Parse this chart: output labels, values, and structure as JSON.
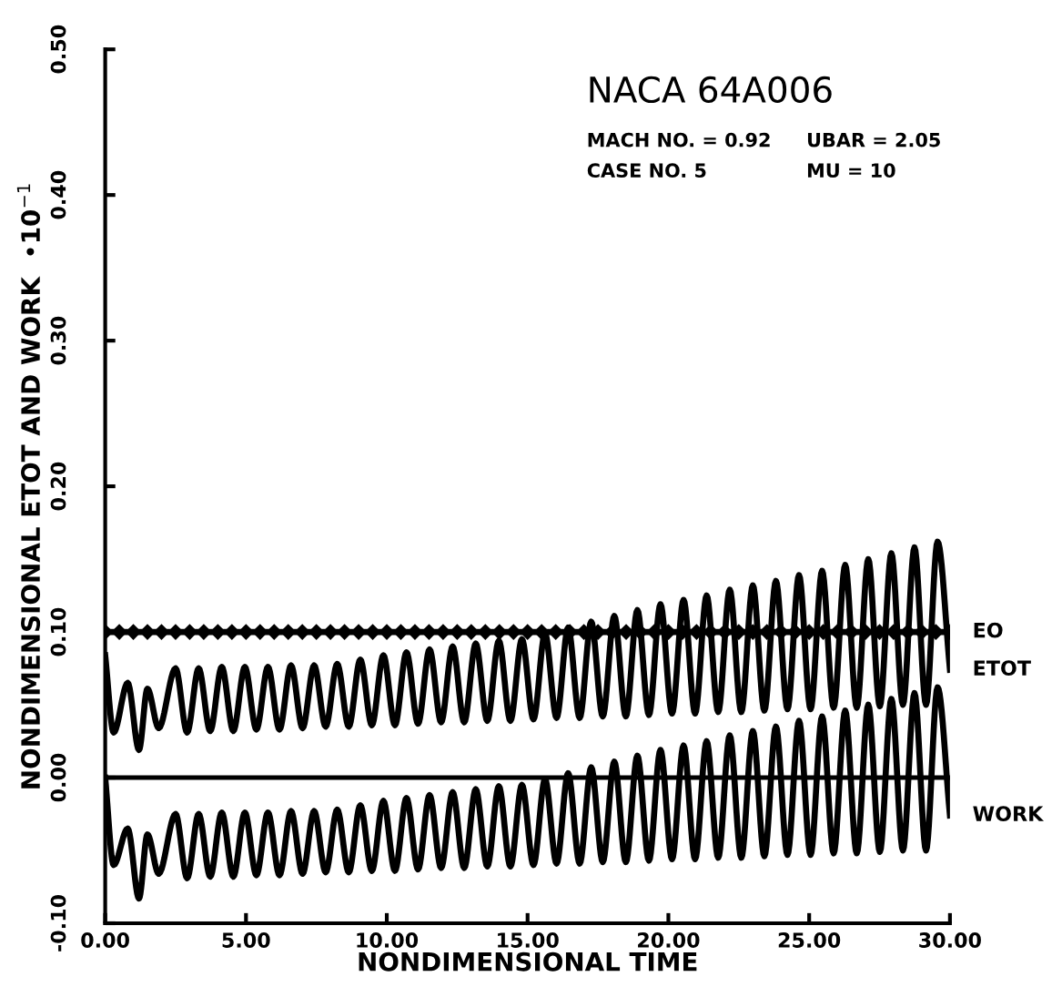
{
  "chart_data": {
    "type": "line",
    "title": "NACA 64A006",
    "annotations": [
      "MACH NO. = 0.92",
      "UBAR = 2.05",
      "CASE NO. 5",
      "MU = 10"
    ],
    "xlabel": "NONDIMENSIONAL TIME",
    "ylabel": "NONDIMENSIONAL ETOT AND WORK  •10$^{−1}$",
    "xlim": [
      0,
      30
    ],
    "ylim": [
      -0.1,
      0.5
    ],
    "xticks": [
      {
        "value": 0,
        "label": "0.00"
      },
      {
        "value": 5,
        "label": "5.00"
      },
      {
        "value": 10,
        "label": "10.00"
      },
      {
        "value": 15,
        "label": "15.00"
      },
      {
        "value": 20,
        "label": "20.00"
      },
      {
        "value": 25,
        "label": "25.00"
      },
      {
        "value": 30,
        "label": "30.00"
      }
    ],
    "yticks": [
      {
        "value": -0.1,
        "label": "-0.10"
      },
      {
        "value": 0,
        "label": "0.00"
      },
      {
        "value": 0.1,
        "label": "0.10"
      },
      {
        "value": 0.2,
        "label": "0.20"
      },
      {
        "value": 0.3,
        "label": "0.30"
      },
      {
        "value": 0.4,
        "label": "0.40"
      },
      {
        "value": 0.5,
        "label": "0.50"
      }
    ],
    "grid": false,
    "legend": "right",
    "ref_lines": [
      {
        "axis": "y",
        "value": 0,
        "color": "#000000",
        "line_style": "solid"
      }
    ],
    "series": [
      {
        "name": "EO",
        "color": "#000000",
        "marker": "diamond",
        "x": [
          0,
          0.5,
          1,
          1.5,
          2,
          2.5,
          3,
          3.5,
          4,
          4.5,
          5,
          5.5,
          6,
          6.5,
          7,
          7.5,
          8,
          8.5,
          9,
          9.5,
          10,
          10.5,
          11,
          11.5,
          12,
          12.5,
          13,
          13.5,
          14,
          14.5,
          15,
          15.5,
          16,
          16.5,
          17,
          17.5,
          18,
          18.5,
          19,
          19.5,
          20,
          20.5,
          21,
          21.5,
          22,
          22.5,
          23,
          23.5,
          24,
          24.5,
          25,
          25.5,
          26,
          26.5,
          27,
          27.5,
          28,
          28.5,
          29,
          29.5,
          30
        ],
        "values": [
          0.1,
          0.1,
          0.1,
          0.1,
          0.1,
          0.1,
          0.1,
          0.1,
          0.1,
          0.1,
          0.1,
          0.1,
          0.1,
          0.1,
          0.1,
          0.1,
          0.1,
          0.1,
          0.1,
          0.1,
          0.1,
          0.1,
          0.1,
          0.1,
          0.1,
          0.1,
          0.1,
          0.1,
          0.1,
          0.1,
          0.1,
          0.1,
          0.1,
          0.1,
          0.1,
          0.1,
          0.1,
          0.1,
          0.1,
          0.1,
          0.1,
          0.1,
          0.1,
          0.1,
          0.1,
          0.1,
          0.1,
          0.1,
          0.1,
          0.1,
          0.1,
          0.1,
          0.1,
          0.1,
          0.1,
          0.1,
          0.1,
          0.1,
          0.1,
          0.1,
          0.1
        ]
      },
      {
        "name": "ETOT",
        "color": "#000000",
        "x": [
          0,
          0.3,
          0.8,
          1.2,
          1.5,
          1.9,
          2.5,
          2.91,
          3.32,
          3.73,
          4.14,
          4.55,
          4.96,
          5.37,
          5.78,
          6.19,
          6.6,
          7.01,
          7.42,
          7.83,
          8.24,
          8.65,
          9.06,
          9.47,
          9.88,
          10.29,
          10.7,
          11.11,
          11.52,
          11.93,
          12.34,
          12.75,
          13.16,
          13.57,
          13.98,
          14.39,
          14.8,
          15.21,
          15.62,
          16.03,
          16.44,
          16.85,
          17.26,
          17.67,
          18.08,
          18.49,
          18.9,
          19.31,
          19.72,
          20.13,
          20.54,
          20.95,
          21.36,
          21.77,
          22.18,
          22.59,
          23.0,
          23.41,
          23.82,
          24.23,
          24.64,
          25.05,
          25.46,
          25.87,
          26.28,
          26.69,
          27.1,
          27.51,
          27.92,
          28.33,
          28.74,
          29.15,
          29.56,
          30.0
        ],
        "values": [
          0.084,
          0.031,
          0.065,
          0.019,
          0.061,
          0.034,
          0.075,
          0.031,
          0.075,
          0.032,
          0.076,
          0.032,
          0.076,
          0.033,
          0.076,
          0.033,
          0.077,
          0.034,
          0.077,
          0.035,
          0.078,
          0.035,
          0.081,
          0.036,
          0.084,
          0.036,
          0.086,
          0.037,
          0.088,
          0.038,
          0.09,
          0.038,
          0.092,
          0.039,
          0.094,
          0.039,
          0.095,
          0.04,
          0.099,
          0.041,
          0.103,
          0.041,
          0.107,
          0.042,
          0.111,
          0.042,
          0.115,
          0.043,
          0.119,
          0.044,
          0.122,
          0.044,
          0.125,
          0.045,
          0.129,
          0.045,
          0.132,
          0.046,
          0.135,
          0.047,
          0.139,
          0.047,
          0.142,
          0.048,
          0.146,
          0.048,
          0.15,
          0.049,
          0.154,
          0.05,
          0.158,
          0.05,
          0.162,
          0.074
        ]
      },
      {
        "name": "WORK",
        "color": "#000000",
        "x": [
          0,
          0.3,
          0.8,
          1.2,
          1.5,
          1.9,
          2.5,
          2.91,
          3.32,
          3.73,
          4.14,
          4.55,
          4.96,
          5.37,
          5.78,
          6.19,
          6.6,
          7.01,
          7.42,
          7.83,
          8.24,
          8.65,
          9.06,
          9.47,
          9.88,
          10.29,
          10.7,
          11.11,
          11.52,
          11.93,
          12.34,
          12.75,
          13.16,
          13.57,
          13.98,
          14.39,
          14.8,
          15.21,
          15.62,
          16.03,
          16.44,
          16.85,
          17.26,
          17.67,
          18.08,
          18.49,
          18.9,
          19.31,
          19.72,
          20.13,
          20.54,
          20.95,
          21.36,
          21.77,
          22.18,
          22.59,
          23.0,
          23.41,
          23.82,
          24.23,
          24.64,
          25.05,
          25.46,
          25.87,
          26.28,
          26.69,
          27.1,
          27.51,
          27.92,
          28.33,
          28.74,
          29.15,
          29.56,
          30.0
        ],
        "values": [
          0.0,
          -0.06,
          -0.035,
          -0.083,
          -0.039,
          -0.066,
          -0.025,
          -0.069,
          -0.025,
          -0.068,
          -0.024,
          -0.068,
          -0.024,
          -0.067,
          -0.024,
          -0.067,
          -0.023,
          -0.066,
          -0.023,
          -0.065,
          -0.022,
          -0.065,
          -0.019,
          -0.064,
          -0.016,
          -0.064,
          -0.014,
          -0.063,
          -0.012,
          -0.062,
          -0.01,
          -0.062,
          -0.008,
          -0.061,
          -0.006,
          -0.061,
          -0.005,
          -0.06,
          -0.001,
          -0.059,
          0.003,
          -0.059,
          0.007,
          -0.058,
          0.011,
          -0.058,
          0.015,
          -0.057,
          0.019,
          -0.056,
          0.022,
          -0.056,
          0.025,
          -0.055,
          0.029,
          -0.055,
          0.032,
          -0.054,
          0.035,
          -0.053,
          0.039,
          -0.053,
          0.042,
          -0.052,
          0.046,
          -0.052,
          0.05,
          -0.051,
          0.054,
          -0.05,
          0.058,
          -0.05,
          0.062,
          -0.026
        ]
      }
    ]
  }
}
